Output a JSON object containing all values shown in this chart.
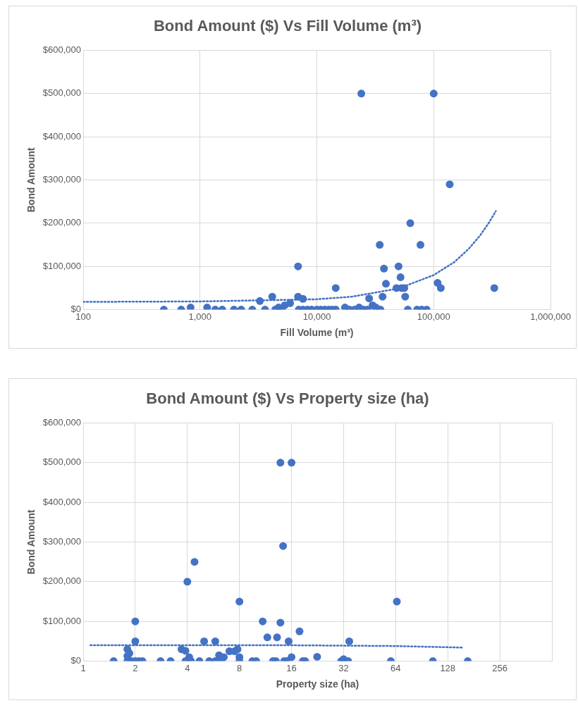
{
  "chart_data": [
    {
      "type": "scatter",
      "title": "Bond Amount ($) Vs Fill Volume (m³)",
      "xlabel": "Fill Volume (m³)",
      "ylabel": "Bond Amount",
      "log": "x",
      "grid": true,
      "marker": "circle",
      "xlim": [
        100,
        1000000
      ],
      "xticks": [
        100,
        {
          "value": 1000,
          "label": "1,000"
        },
        {
          "value": 10000,
          "label": "10,000"
        },
        {
          "value": 100000,
          "label": "100,000"
        },
        {
          "value": 1000000,
          "label": "1,000,000"
        }
      ],
      "ylim": [
        0,
        600000
      ],
      "yticks": [
        {
          "value": 0,
          "label": "$0"
        },
        {
          "value": 100000,
          "label": "$100,000"
        },
        {
          "value": 200000,
          "label": "$200,000"
        },
        {
          "value": 300000,
          "label": "$300,000"
        },
        {
          "value": 400000,
          "label": "$400,000"
        },
        {
          "value": 500000,
          "label": "$500,000"
        },
        {
          "value": 600000,
          "label": "$600,000"
        }
      ],
      "series": [
        {
          "type": "scatter",
          "color": "#4472c4",
          "x": [
            490,
            690,
            830,
            1150,
            1350,
            1550,
            1950,
            2250,
            2800,
            3250,
            3600,
            4150,
            4400,
            4700,
            5000,
            5300,
            5900,
            6900,
            6900,
            7600,
            7000,
            7600,
            8300,
            9000,
            10000,
            10800,
            11700,
            12600,
            13500,
            14500,
            14500,
            17400,
            19000,
            21000,
            23000,
            24000,
            25000,
            27000,
            28000,
            30000,
            32000,
            35000,
            34500,
            36500,
            37500,
            39000,
            48000,
            50000,
            52000,
            53000,
            56000,
            57000,
            60000,
            63000,
            72000,
            77000,
            79000,
            87000,
            100000,
            108000,
            115000,
            137000,
            330000
          ],
          "values": [
            0,
            0,
            5000,
            5000,
            0,
            0,
            0,
            0,
            0,
            20000,
            0,
            30000,
            0,
            5000,
            0,
            10000,
            15000,
            100000,
            30000,
            25000,
            0,
            0,
            0,
            0,
            0,
            0,
            0,
            0,
            0,
            0,
            50000,
            5000,
            0,
            0,
            5000,
            500000,
            0,
            0,
            26000,
            10000,
            5000,
            0,
            150000,
            30000,
            95000,
            60000,
            50000,
            100000,
            75000,
            50000,
            50000,
            30000,
            0,
            200000,
            0,
            150000,
            0,
            0,
            500000,
            62000,
            50000,
            290000,
            50000
          ]
        },
        {
          "type": "line",
          "color": "#4472c4",
          "line_style": "dotted",
          "marker": "none",
          "x": [
            100,
            1000,
            10000,
            20000,
            50000,
            100000,
            150000,
            200000,
            250000,
            300000,
            340000
          ],
          "values": [
            18000,
            19000,
            24000,
            30000,
            49000,
            80000,
            110000,
            141000,
            172000,
            203000,
            228000
          ]
        }
      ]
    },
    {
      "type": "scatter",
      "title": "Bond Amount ($) Vs Property size (ha)",
      "xlabel": "Property size (ha)",
      "ylabel": "Bond Amount",
      "log": "x",
      "grid": true,
      "marker": "circle",
      "xlim": [
        1,
        512
      ],
      "xticks": [
        1,
        2,
        4,
        8,
        16,
        32,
        64,
        128,
        256,
        {
          "value": 512,
          "label": null
        }
      ],
      "ylim": [
        0,
        600000
      ],
      "yticks": [
        {
          "value": 0,
          "label": "$0"
        },
        {
          "value": 100000,
          "label": "$100,000"
        },
        {
          "value": 200000,
          "label": "$200,000"
        },
        {
          "value": 300000,
          "label": "$300,000"
        },
        {
          "value": 400000,
          "label": "$400,000"
        },
        {
          "value": 500000,
          "label": "$500,000"
        },
        {
          "value": 600000,
          "label": "$600,000"
        }
      ],
      "series": [
        {
          "type": "scatter",
          "color": "#4472c4",
          "x": [
            1.5,
            1.8,
            1.8,
            1.8,
            1.85,
            1.9,
            2,
            2,
            2,
            2.1,
            2.2,
            2.8,
            3.2,
            3.7,
            3.9,
            3.9,
            4,
            4.1,
            4.2,
            4.4,
            4.7,
            5,
            5.35,
            5.8,
            5.8,
            6.1,
            6.3,
            6.5,
            7,
            7.5,
            7.8,
            8,
            8,
            8,
            9.5,
            10,
            10.9,
            11.6,
            12.5,
            13,
            13.2,
            13.8,
            13.8,
            14.3,
            14.5,
            15,
            15.4,
            16,
            16,
            17.8,
            18.6,
            19.2,
            22.5,
            31,
            32,
            34,
            34.5,
            60,
            65,
            105,
            167
          ],
          "values": [
            0,
            0,
            13000,
            30000,
            20000,
            0,
            0,
            100000,
            50000,
            0,
            0,
            0,
            0,
            30000,
            26000,
            0,
            200000,
            10000,
            0,
            250000,
            0,
            50000,
            0,
            50000,
            0,
            15000,
            5000,
            10000,
            25000,
            25000,
            30000,
            150000,
            0,
            10000,
            0,
            0,
            100000,
            60000,
            0,
            0,
            60000,
            500000,
            97000,
            290000,
            0,
            0,
            50000,
            10000,
            500000,
            75000,
            0,
            0,
            11000,
            0,
            5000,
            0,
            50000,
            0,
            150000,
            0,
            0
          ]
        },
        {
          "type": "line",
          "color": "#4472c4",
          "line_style": "dotted",
          "marker": "none",
          "x": [
            1.1,
            4,
            16,
            64,
            128,
            158
          ],
          "values": [
            40000,
            40000,
            40000,
            38000,
            35000,
            34000
          ]
        }
      ]
    }
  ]
}
